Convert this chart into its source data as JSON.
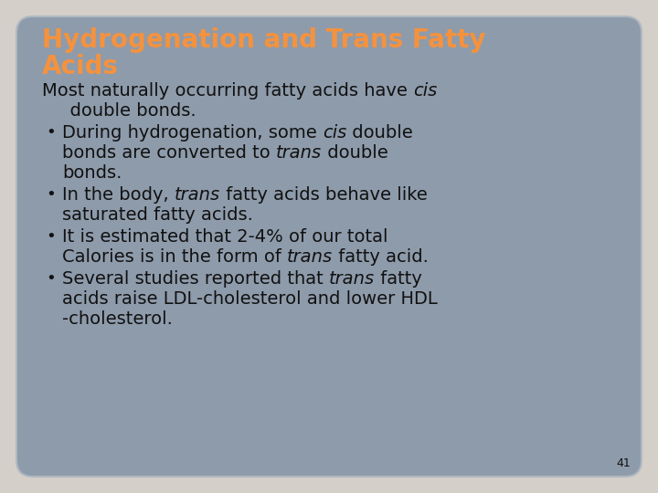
{
  "background_color": "#d4cfc8",
  "slide_facecolor": "#8e9bab",
  "slide_edgecolor": "#b0b8c0",
  "title_line1": "Hydrogenation and Trans Fatty",
  "title_line2": "Acids",
  "title_color": "#f5923e",
  "title_fontsize": 20,
  "body_color": "#111111",
  "body_fontsize": 14,
  "bullet_fontsize": 12,
  "slide_number": "41",
  "slide_number_fontsize": 9,
  "font_family": "DejaVu Sans",
  "content": [
    {
      "type": "intro",
      "lines": [
        [
          {
            "text": "Most naturally occurring fatty acids have ",
            "italic": false
          },
          {
            "text": "cis",
            "italic": true
          }
        ],
        [
          {
            "text": "  double bonds.",
            "italic": false
          }
        ]
      ]
    },
    {
      "type": "bullet",
      "lines": [
        [
          {
            "text": "During hydrogenation, some ",
            "italic": false
          },
          {
            "text": "cis",
            "italic": true
          },
          {
            "text": " double",
            "italic": false
          }
        ],
        [
          {
            "text": "bonds are converted to ",
            "italic": false
          },
          {
            "text": "trans",
            "italic": true
          },
          {
            "text": " double",
            "italic": false
          }
        ],
        [
          {
            "text": "bonds.",
            "italic": false
          }
        ]
      ]
    },
    {
      "type": "bullet",
      "lines": [
        [
          {
            "text": "In the body, ",
            "italic": false
          },
          {
            "text": "trans",
            "italic": true
          },
          {
            "text": " fatty acids behave like",
            "italic": false
          }
        ],
        [
          {
            "text": "saturated fatty acids.",
            "italic": false
          }
        ]
      ]
    },
    {
      "type": "bullet",
      "lines": [
        [
          {
            "text": "It is estimated that 2-4% of our total",
            "italic": false
          }
        ],
        [
          {
            "text": "Calories is in the form of ",
            "italic": false
          },
          {
            "text": "trans",
            "italic": true
          },
          {
            "text": " fatty acid.",
            "italic": false
          }
        ]
      ]
    },
    {
      "type": "bullet",
      "lines": [
        [
          {
            "text": "Several studies reported that ",
            "italic": false
          },
          {
            "text": "trans",
            "italic": true
          },
          {
            "text": " fatty",
            "italic": false
          }
        ],
        [
          {
            "text": "acids raise LDL-cholesterol and lower HDL",
            "italic": false
          }
        ],
        [
          {
            "text": "-cholesterol.",
            "italic": false
          }
        ]
      ]
    }
  ]
}
